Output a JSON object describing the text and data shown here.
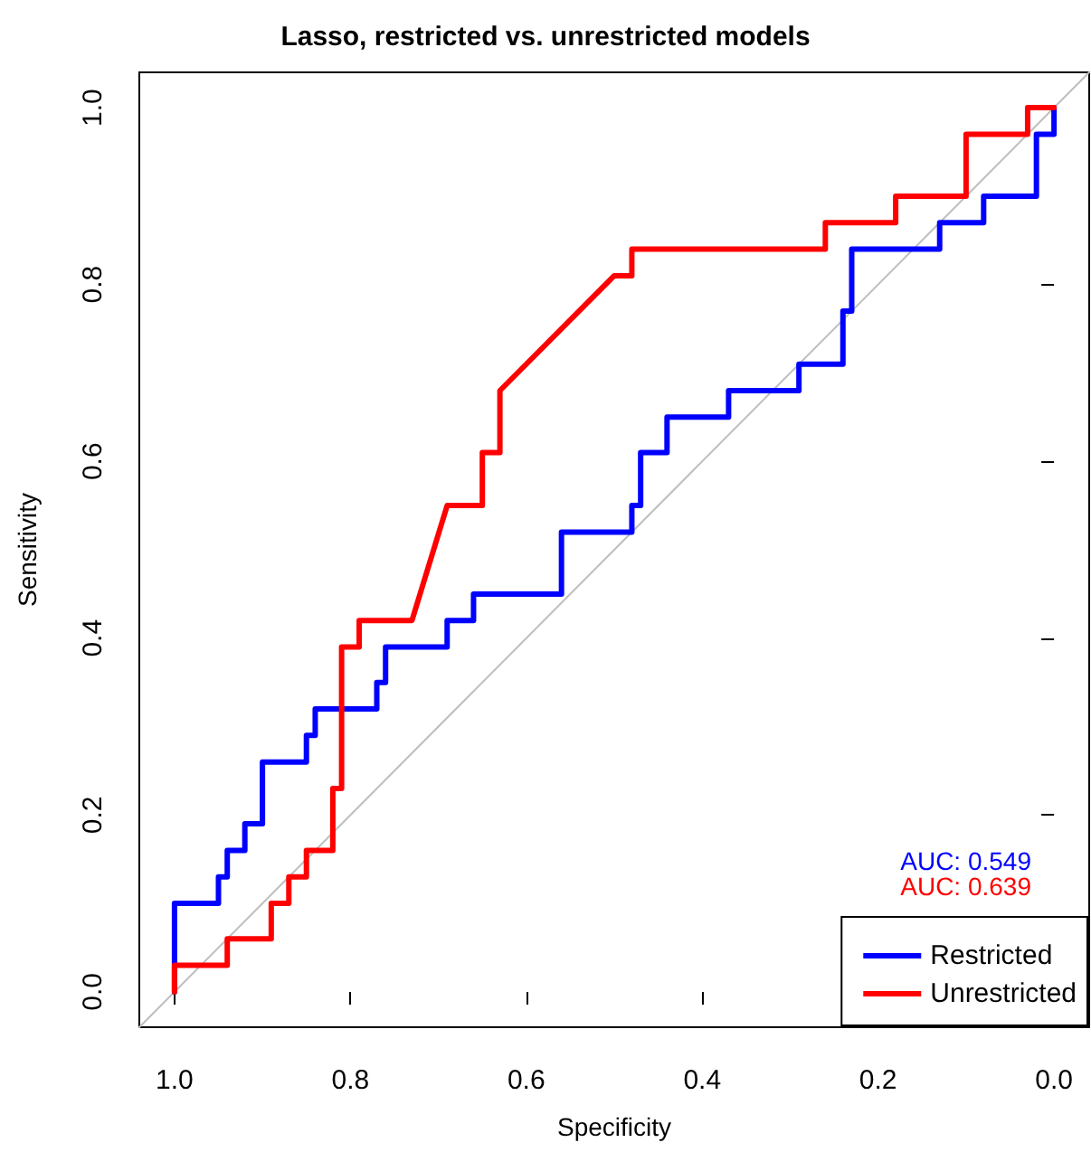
{
  "chart_data": {
    "type": "line",
    "title": "Lasso, restricted vs. unrestricted models",
    "xlabel": "Specificity",
    "ylabel": "Sensitivity",
    "xlim": [
      1.04,
      -0.04
    ],
    "ylim": [
      -0.04,
      1.04
    ],
    "xticks": [
      {
        "value": 1,
        "label": "1.0"
      },
      0.8,
      0.6,
      0.4,
      0.2,
      {
        "value": 0,
        "label": "0.0"
      }
    ],
    "yticks": [
      {
        "value": 0,
        "label": "0.0"
      },
      0.2,
      0.4,
      0.6,
      0.8,
      {
        "value": 1,
        "label": "1.0"
      }
    ],
    "grid": false,
    "legend": "bottom right",
    "marker": "none",
    "line_style": "solid",
    "annotations": [
      "AUC: 0.549",
      "AUC: 0.639"
    ],
    "series": [
      {
        "name": "Restricted",
        "color": "#0000ff",
        "x": [
          1,
          1,
          0.95,
          0.95,
          0.94,
          0.94,
          0.92,
          0.92,
          0.9,
          0.9,
          0.85,
          0.85,
          0.84,
          0.84,
          0.77,
          0.77,
          0.76,
          0.76,
          0.69,
          0.69,
          0.66,
          0.66,
          0.56,
          0.56,
          0.48,
          0.48,
          0.47,
          0.47,
          0.44,
          0.44,
          0.37,
          0.37,
          0.29,
          0.29,
          0.24,
          0.24,
          0.23,
          0.23,
          0.13,
          0.13,
          0.08,
          0.08,
          0.02,
          0.02,
          0,
          0
        ],
        "values": [
          0,
          0.1,
          0.1,
          0.13,
          0.13,
          0.16,
          0.16,
          0.19,
          0.19,
          0.26,
          0.26,
          0.29,
          0.29,
          0.32,
          0.32,
          0.35,
          0.35,
          0.39,
          0.39,
          0.42,
          0.42,
          0.45,
          0.45,
          0.52,
          0.52,
          0.55,
          0.55,
          0.61,
          0.61,
          0.65,
          0.65,
          0.68,
          0.68,
          0.71,
          0.71,
          0.77,
          0.77,
          0.84,
          0.84,
          0.87,
          0.87,
          0.9,
          0.9,
          0.97,
          0.97,
          1
        ]
      },
      {
        "name": "Unrestricted",
        "color": "#ff0000",
        "x": [
          1,
          1,
          0.94,
          0.94,
          0.89,
          0.89,
          0.87,
          0.87,
          0.85,
          0.85,
          0.82,
          0.82,
          0.81,
          0.81,
          0.79,
          0.79,
          0.73,
          0.69,
          0.65,
          0.65,
          0.63,
          0.63,
          0.5,
          0.48,
          0.48,
          0.26,
          0.26,
          0.18,
          0.18,
          0.1,
          0.1,
          0.03,
          0.03,
          0
        ],
        "values": [
          0,
          0.03,
          0.03,
          0.06,
          0.06,
          0.1,
          0.1,
          0.13,
          0.13,
          0.16,
          0.16,
          0.23,
          0.23,
          0.39,
          0.39,
          0.42,
          0.42,
          0.55,
          0.55,
          0.61,
          0.61,
          0.68,
          0.81,
          0.81,
          0.84,
          0.84,
          0.87,
          0.87,
          0.9,
          0.9,
          0.97,
          0.97,
          1,
          1
        ]
      },
      {
        "color": "#bebebe",
        "x": [
          1.04,
          -0.04
        ],
        "values": [
          -0.04,
          1.04
        ]
      }
    ]
  }
}
